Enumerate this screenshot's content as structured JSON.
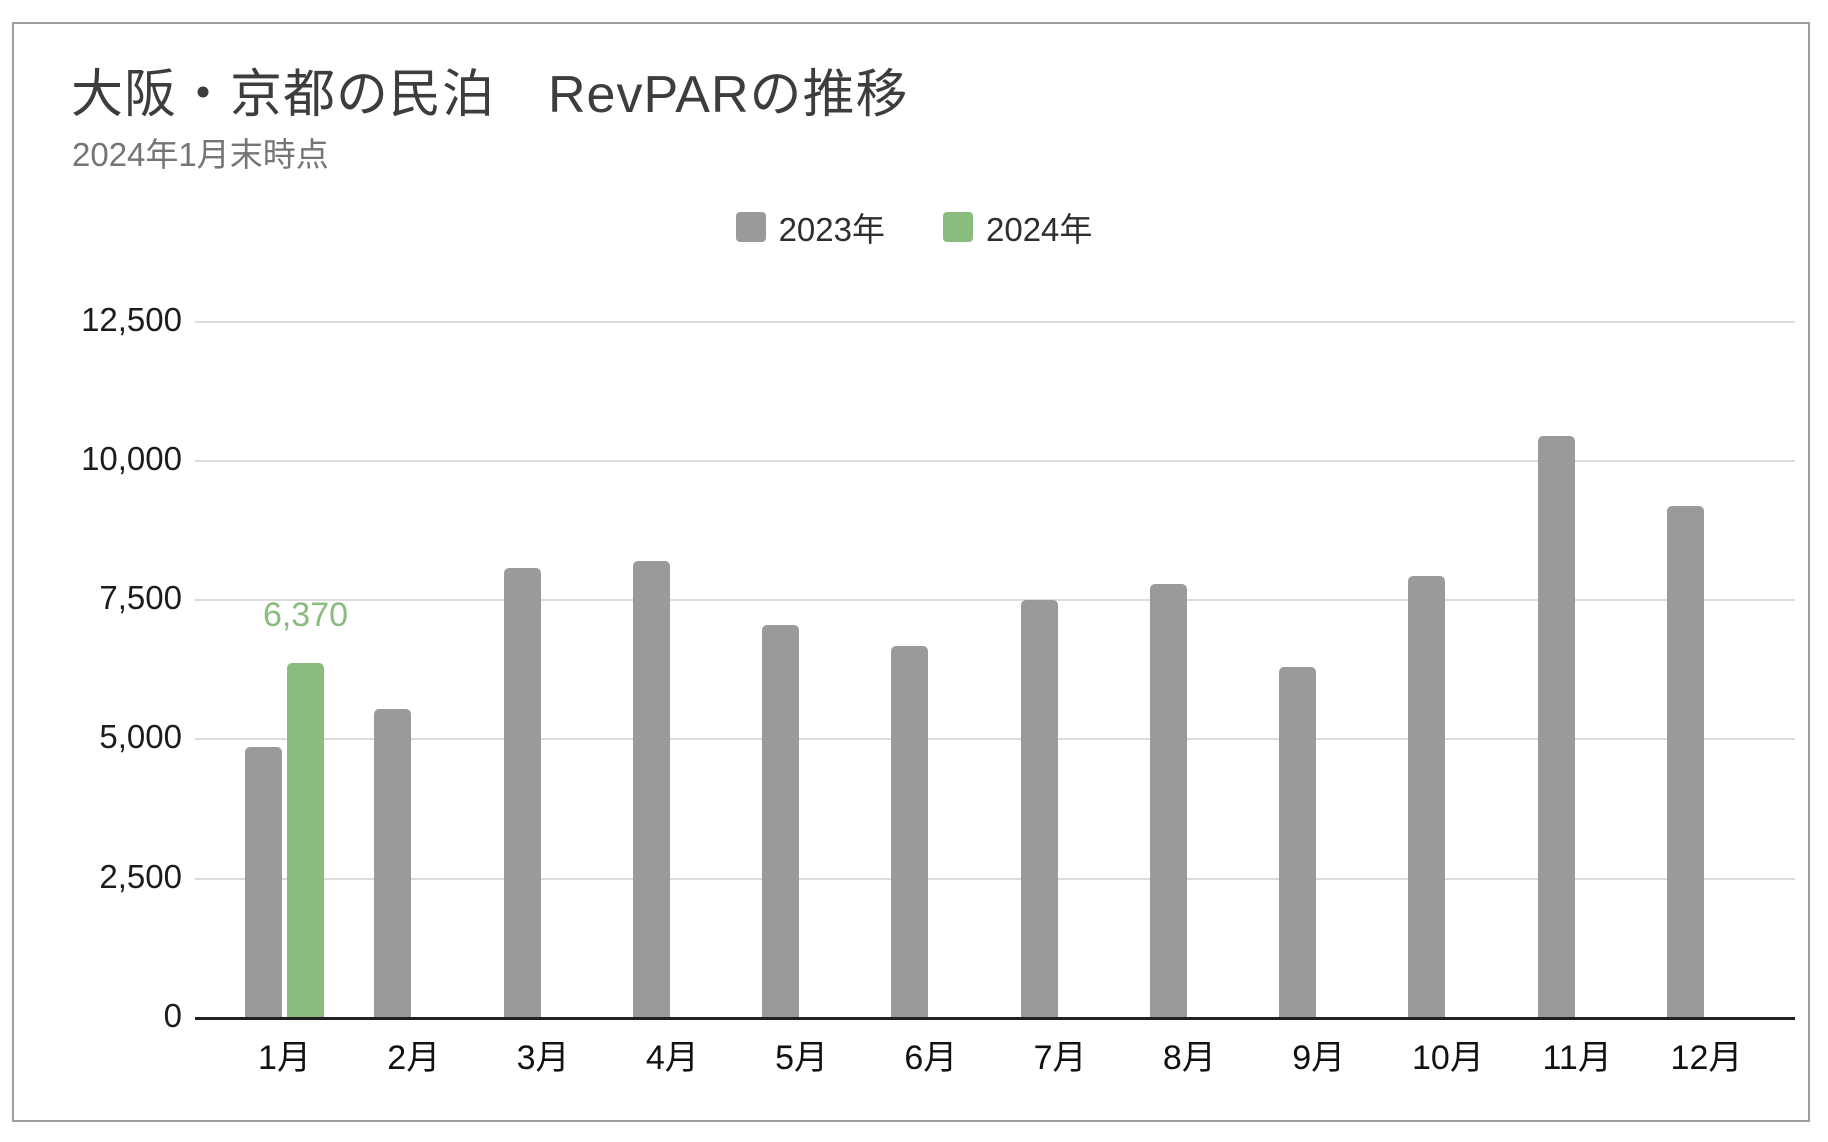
{
  "chart_data": {
    "type": "bar",
    "title": "大阪・京都の民泊　RevPARの推移",
    "subtitle": "2024年1月末時点",
    "categories": [
      "1月",
      "2月",
      "3月",
      "4月",
      "5月",
      "6月",
      "7月",
      "8月",
      "9月",
      "10月",
      "11月",
      "12月"
    ],
    "series": [
      {
        "name": "2023年",
        "color": "#9a9a9a",
        "values": [
          4860,
          5550,
          8080,
          8200,
          7050,
          6670,
          7500,
          7780,
          6300,
          7930,
          10450,
          9190
        ]
      },
      {
        "name": "2024年",
        "color": "#8abc7e",
        "values": [
          6370,
          null,
          null,
          null,
          null,
          null,
          null,
          null,
          null,
          null,
          null,
          null
        ]
      }
    ],
    "data_labels": [
      {
        "series": "2024年",
        "category": "1月",
        "value": 6370,
        "text": "6,370",
        "color": "#8abc7e"
      }
    ],
    "ylim": [
      0,
      12500
    ],
    "ytick_step": 2500,
    "ytick_labels": [
      "0",
      "2,500",
      "5,000",
      "7,500",
      "10,000",
      "12,500"
    ],
    "grid": "horizontal",
    "gridline_color": "#dcdcdc",
    "baseline_color": "#212121",
    "axis_label_color": "#1c1c1c",
    "legend_position": "top-center"
  }
}
